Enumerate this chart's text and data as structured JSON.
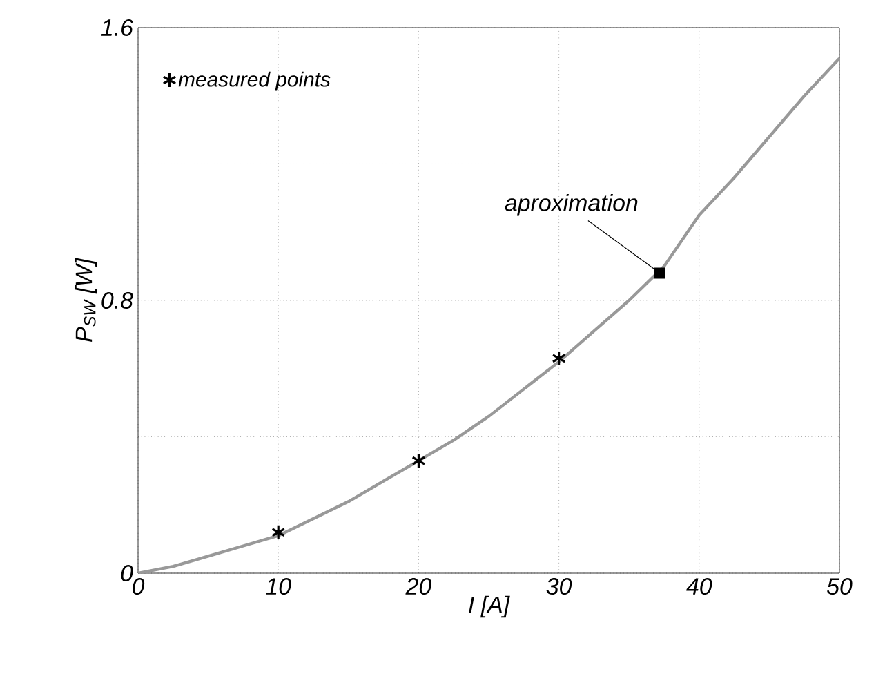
{
  "chart_data": {
    "type": "line",
    "xlabel": "I [A]",
    "ylabel": "P$_{SW}$ [W]",
    "xlim": [
      0,
      50
    ],
    "ylim": [
      0,
      1.6
    ],
    "xticks": [
      0,
      10,
      20,
      30,
      40,
      50
    ],
    "yticks": [
      0,
      {
        "value": 0.4,
        "label": null
      },
      0.8,
      {
        "value": 1.2,
        "label": null
      },
      1.6
    ],
    "grid": true,
    "legend": "top left",
    "series": [
      {
        "name": "measured points",
        "type": "scatter",
        "marker": "cross",
        "color": "#000000",
        "x": [
          10,
          20,
          30
        ],
        "values": [
          0.12,
          0.33,
          0.63
        ]
      },
      {
        "marker": "none",
        "color": "#999999",
        "x": [
          0,
          2.5,
          5,
          7.5,
          10,
          12.5,
          15,
          17.5,
          20,
          22.5,
          25,
          27.5,
          30,
          32.5,
          35,
          37.5,
          40,
          42.5,
          45,
          47.5,
          50
        ],
        "values": [
          0,
          0.02,
          0.05,
          0.08,
          0.11,
          0.16,
          0.21,
          0.27,
          0.33,
          0.39,
          0.46,
          0.54,
          0.62,
          0.71,
          0.8,
          0.9,
          1.05,
          1.16,
          1.28,
          1.4,
          1.51
        ]
      }
    ],
    "annotations": [
      {
        "text": "aproximation",
        "x": 37.2,
        "y": 0.88
      }
    ]
  }
}
